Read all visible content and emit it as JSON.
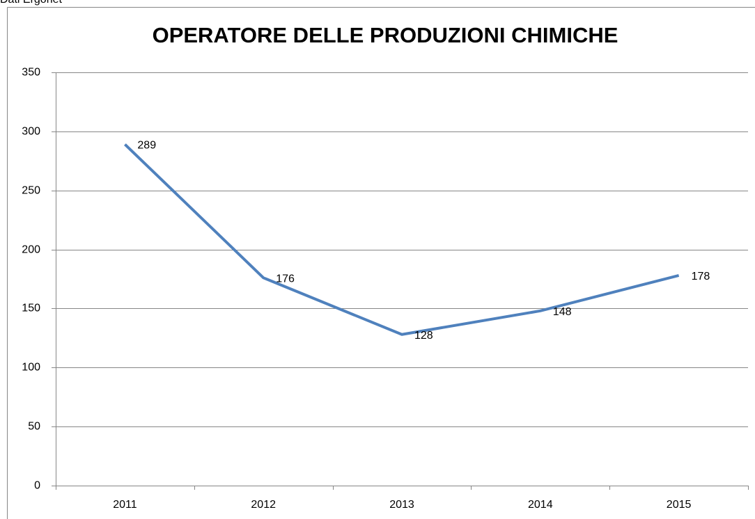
{
  "source": "Dati Ergonet",
  "chart_data": {
    "type": "line",
    "title": "OPERATORE DELLE PRODUZIONI CHIMICHE",
    "categories": [
      "2011",
      "2012",
      "2013",
      "2014",
      "2015"
    ],
    "series": [
      {
        "name": "OPERATORE DELLE PRODUZIONI CHIMICHE",
        "color": "#4f81bd",
        "values": [
          289,
          176,
          128,
          148,
          178
        ]
      }
    ],
    "ylim": [
      0,
      350
    ],
    "yticks": [
      0,
      50,
      100,
      150,
      200,
      250,
      300,
      350
    ],
    "grid": true
  }
}
